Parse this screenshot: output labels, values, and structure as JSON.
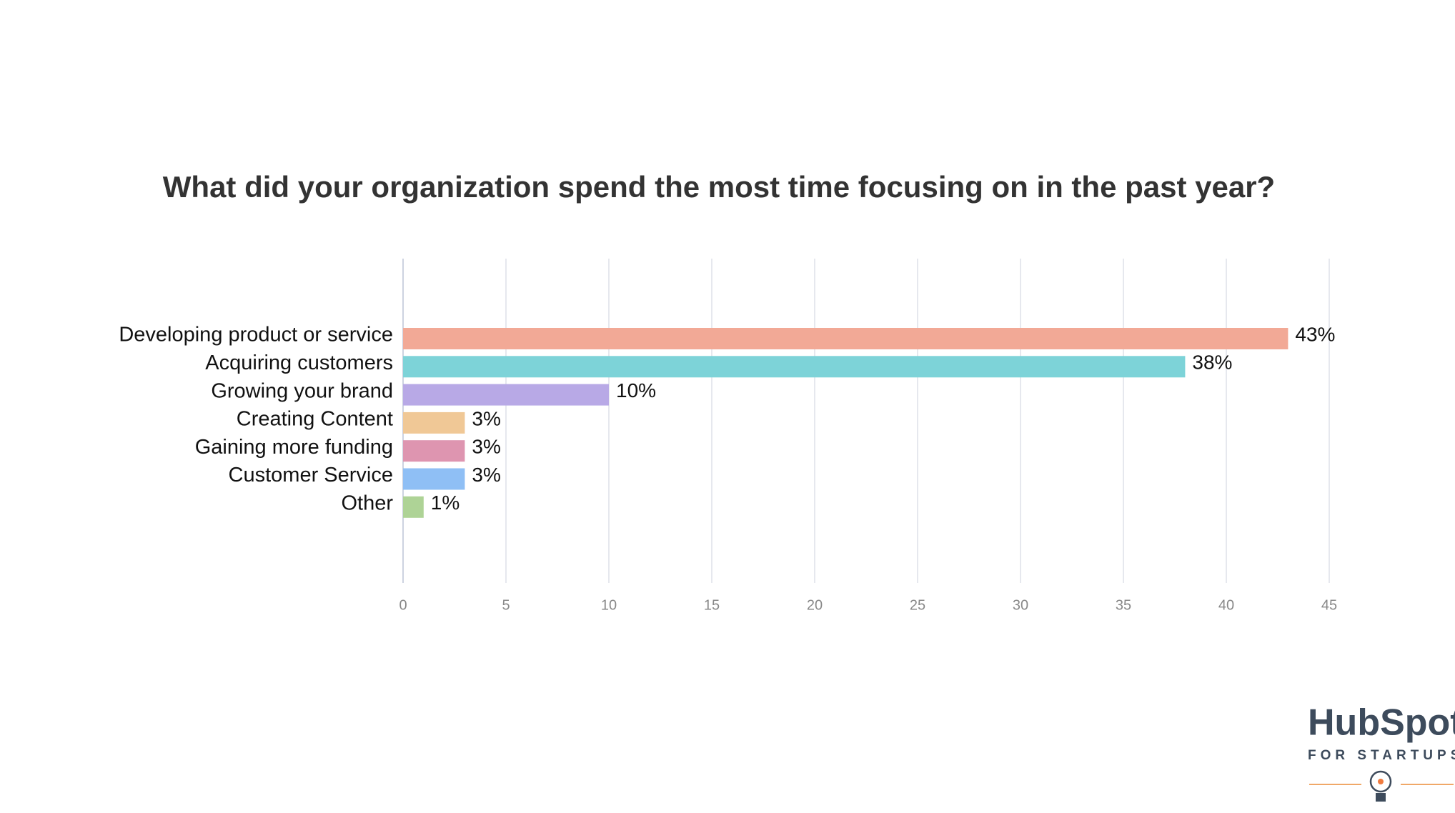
{
  "chart_data": {
    "type": "bar",
    "orientation": "horizontal",
    "title": "What did your organization spend the most time focusing on in the past year?",
    "categories": [
      "Developing product or service",
      "Acquiring customers",
      "Growing your brand",
      "Creating Content",
      "Gaining more funding",
      "Customer Service",
      "Other"
    ],
    "values": [
      43,
      38,
      10,
      3,
      3,
      3,
      1
    ],
    "value_labels": [
      "43%",
      "38%",
      "10%",
      "3%",
      "3%",
      "3%",
      "1%"
    ],
    "colors": [
      "#f2a996",
      "#7dd3d8",
      "#b8a9e6",
      "#f0c896",
      "#de95b0",
      "#8fbff5",
      "#aed396"
    ],
    "xlim": [
      0,
      45
    ],
    "xticks": [
      0,
      5,
      10,
      15,
      20,
      25,
      30,
      35,
      40,
      45
    ],
    "grid": true
  },
  "logo": {
    "brand": "HubSpot",
    "tagline": "FOR STARTUPS"
  }
}
